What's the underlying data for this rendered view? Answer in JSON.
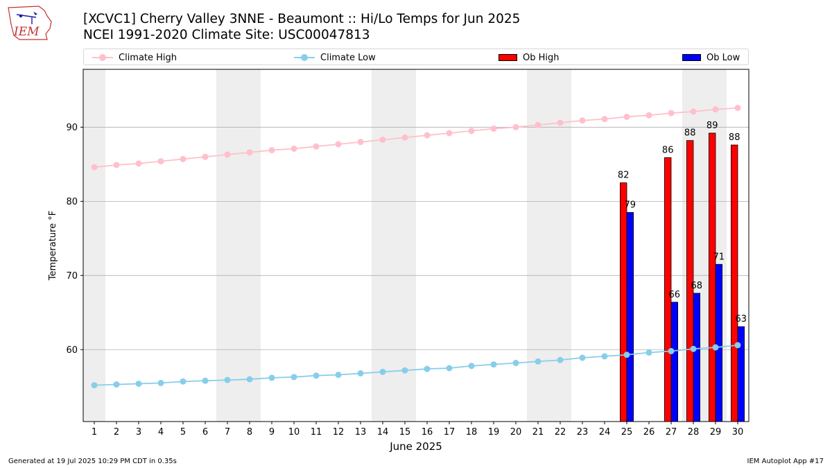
{
  "header": {
    "logo_text": "IEM",
    "title_line1": "[XCVC1] Cherry Valley 3NNE - Beaumont :: Hi/Lo Temps for Jun 2025",
    "title_line2": "NCEI 1991-2020 Climate Site: USC00047813"
  },
  "legend": {
    "climate_high": "Climate High",
    "climate_low": "Climate Low",
    "ob_high": "Ob High",
    "ob_low": "Ob Low"
  },
  "footer": {
    "generated": "Generated at 19 Jul 2025 10:29 PM CDT in 0.35s",
    "app": "IEM Autoplot App #17"
  },
  "colors": {
    "climate_high": "#ffc0cb",
    "climate_low": "#87ceeb",
    "ob_high": "#ff0000",
    "ob_low": "#0000ff",
    "weekend_shade": "#eeeeee",
    "grid": "#b0b0b0"
  },
  "chart_data": {
    "type": "bar",
    "xlabel": "June 2025",
    "ylabel": "Temperature °F",
    "xlim": [
      0.5,
      30.5
    ],
    "ylim": [
      50.3,
      97.8
    ],
    "yticks": [
      60,
      70,
      80,
      90
    ],
    "grid": "horizontal",
    "legend_position": "top",
    "x": [
      1,
      2,
      3,
      4,
      5,
      6,
      7,
      8,
      9,
      10,
      11,
      12,
      13,
      14,
      15,
      16,
      17,
      18,
      19,
      20,
      21,
      22,
      23,
      24,
      25,
      26,
      27,
      28,
      29,
      30
    ],
    "shaded_days": [
      1,
      7,
      8,
      14,
      15,
      21,
      22,
      28,
      29
    ],
    "series": [
      {
        "name": "Climate High",
        "kind": "line",
        "values": [
          84.6,
          84.9,
          85.1,
          85.4,
          85.7,
          86.0,
          86.3,
          86.6,
          86.9,
          87.1,
          87.4,
          87.7,
          88.0,
          88.3,
          88.6,
          88.9,
          89.2,
          89.5,
          89.8,
          90.0,
          90.3,
          90.6,
          90.9,
          91.1,
          91.4,
          91.6,
          91.9,
          92.1,
          92.4,
          92.6
        ]
      },
      {
        "name": "Climate Low",
        "kind": "line",
        "values": [
          55.2,
          55.3,
          55.4,
          55.5,
          55.7,
          55.8,
          55.9,
          56.0,
          56.2,
          56.3,
          56.5,
          56.6,
          56.8,
          57.0,
          57.2,
          57.4,
          57.5,
          57.8,
          58.0,
          58.2,
          58.4,
          58.6,
          58.9,
          59.1,
          59.3,
          59.6,
          59.8,
          60.1,
          60.3,
          60.6
        ]
      },
      {
        "name": "Ob High",
        "kind": "bar",
        "values": [
          null,
          null,
          null,
          null,
          null,
          null,
          null,
          null,
          null,
          null,
          null,
          null,
          null,
          null,
          null,
          null,
          null,
          null,
          null,
          null,
          null,
          null,
          null,
          null,
          82,
          null,
          86,
          88,
          89,
          88
        ],
        "plot_values": [
          null,
          null,
          null,
          null,
          null,
          null,
          null,
          null,
          null,
          null,
          null,
          null,
          null,
          null,
          null,
          null,
          null,
          null,
          null,
          null,
          null,
          null,
          null,
          null,
          82.5,
          null,
          85.9,
          88.2,
          89.2,
          87.6
        ]
      },
      {
        "name": "Ob Low",
        "kind": "bar",
        "values": [
          null,
          null,
          null,
          null,
          null,
          null,
          null,
          null,
          null,
          null,
          null,
          null,
          null,
          null,
          null,
          null,
          null,
          null,
          null,
          null,
          null,
          null,
          null,
          null,
          79,
          null,
          66,
          68,
          71,
          63
        ],
        "plot_values": [
          null,
          null,
          null,
          null,
          null,
          null,
          null,
          null,
          null,
          null,
          null,
          null,
          null,
          null,
          null,
          null,
          null,
          null,
          null,
          null,
          null,
          null,
          null,
          null,
          78.5,
          null,
          66.4,
          67.6,
          71.5,
          63.1
        ]
      }
    ]
  }
}
